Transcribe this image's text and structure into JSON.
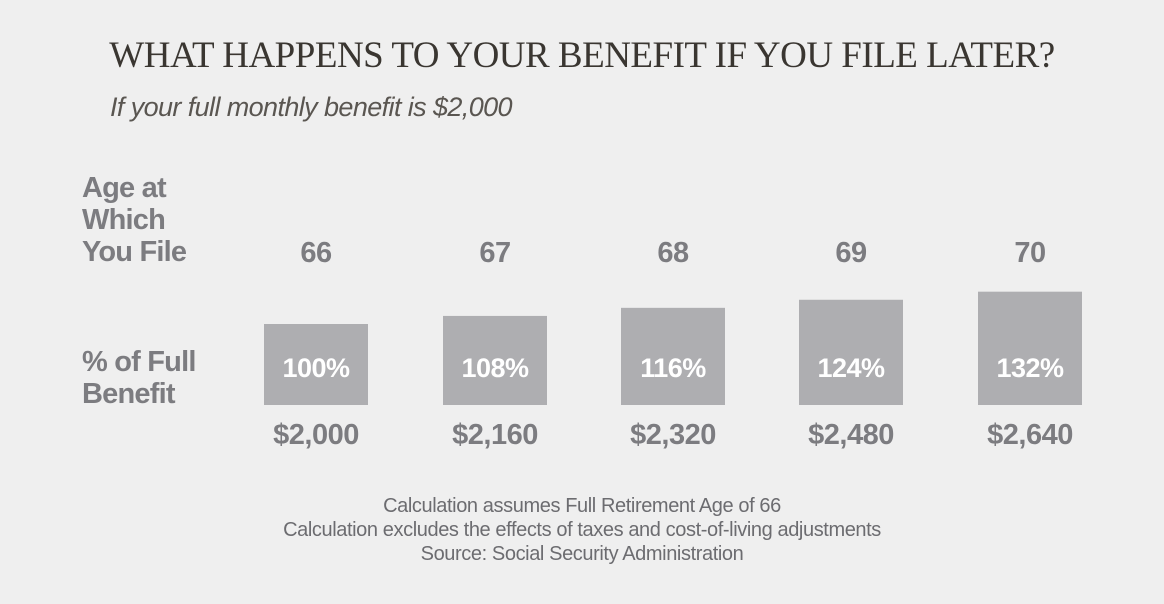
{
  "chart_data": {
    "type": "bar",
    "title": "WHAT HAPPENS TO YOUR BENEFIT IF YOU FILE LATER?",
    "subtitle": "If your full monthly benefit is $2,000",
    "row_labels": {
      "age": [
        "Age at",
        "Which",
        "You File"
      ],
      "percent": [
        "% of Full",
        "Benefit"
      ]
    },
    "categories": [
      "66",
      "67",
      "68",
      "69",
      "70"
    ],
    "values": [
      100,
      108,
      116,
      124,
      132
    ],
    "value_labels": [
      "100%",
      "108%",
      "116%",
      "124%",
      "132%"
    ],
    "dollar_labels": [
      "$2,000",
      "$2,160",
      "$2,320",
      "$2,480",
      "$2,640"
    ],
    "bar_color": "#aeaeb1",
    "xlabel": "",
    "ylabel": "",
    "grid": false
  },
  "notes": [
    "Calculation assumes Full Retirement Age of 66",
    "Calculation excludes the effects of taxes and cost-of-living adjustments",
    "Source: Social Security Administration"
  ]
}
